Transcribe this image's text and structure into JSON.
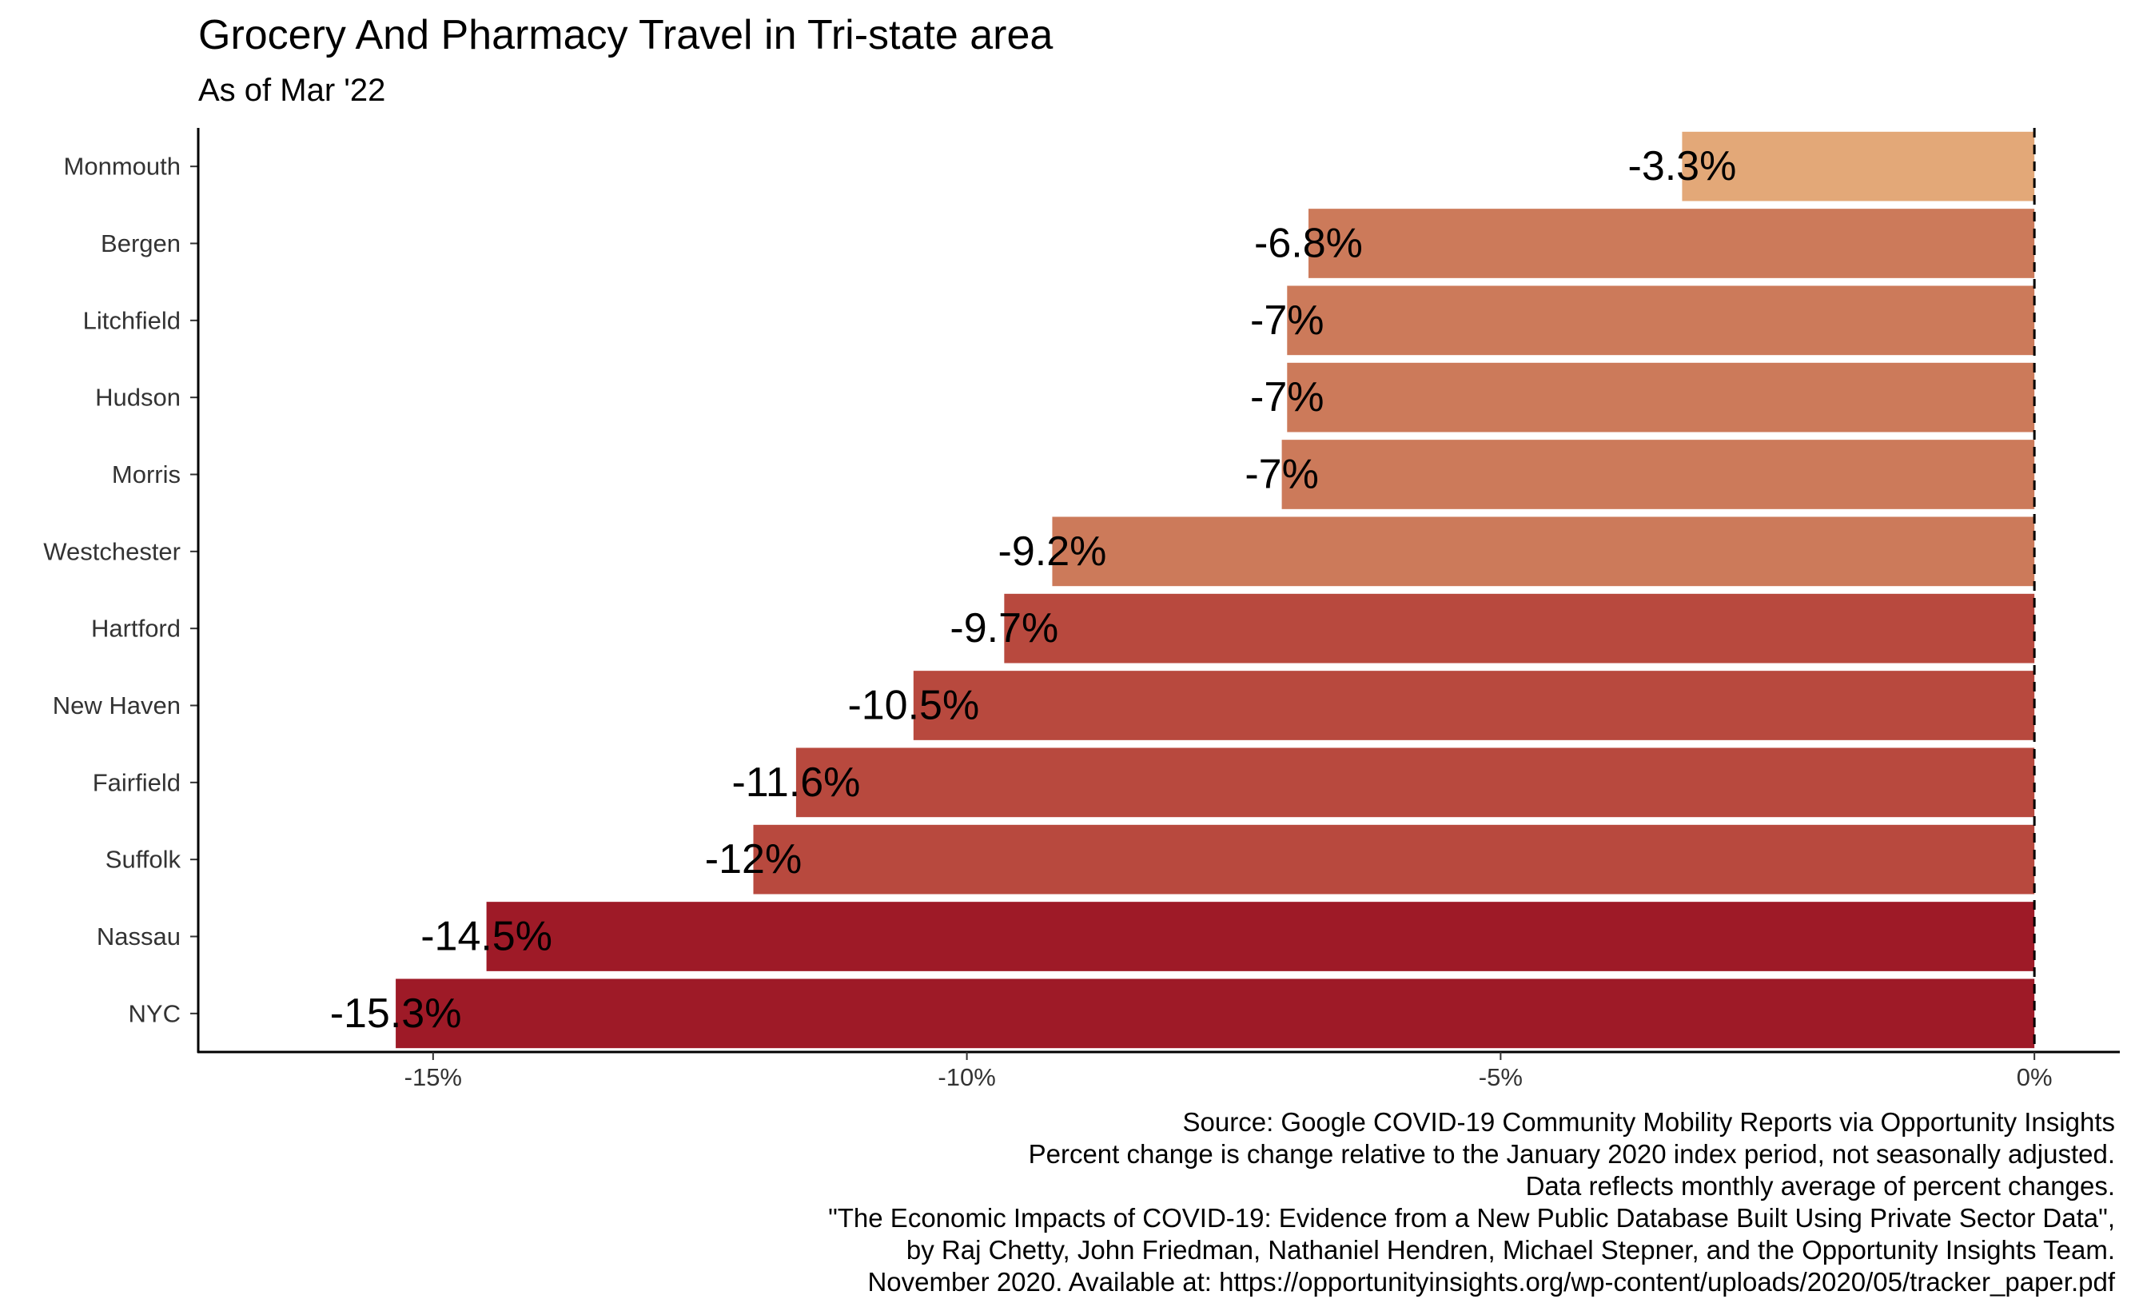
{
  "chart_data": {
    "type": "bar",
    "orientation": "horizontal",
    "title": "Grocery And Pharmacy Travel in Tri-state area",
    "subtitle": "As of Mar '22",
    "categories": [
      "Monmouth",
      "Bergen",
      "Litchfield",
      "Hudson",
      "Morris",
      "Westchester",
      "Hartford",
      "New Haven",
      "Fairfield",
      "Suffolk",
      "Nassau",
      "NYC"
    ],
    "values": [
      -3.3,
      -6.8,
      -7.0,
      -7.0,
      -7.05,
      -9.2,
      -9.65,
      -10.5,
      -11.6,
      -12.0,
      -14.5,
      -15.35
    ],
    "data_labels": [
      "-3.3%",
      "-6.8%",
      "-7%",
      "-7%",
      "-7%",
      "-9.2%",
      "-9.7%",
      "-10.5%",
      "-11.6%",
      "-12%",
      "-14.5%",
      "-15.3%"
    ],
    "bar_colors": [
      "#E3A878",
      "#CC7A5A",
      "#CC7A5A",
      "#CC7A5A",
      "#CC7A5A",
      "#CC7A5A",
      "#B8493E",
      "#B8493E",
      "#B8493E",
      "#B8493E",
      "#9E1A27",
      "#9E1A27"
    ],
    "x_ticks": [
      -15,
      -10,
      -5,
      0
    ],
    "x_tick_labels": [
      "-15%",
      "-10%",
      "-5%",
      "0%"
    ],
    "xlim": [
      -17.2,
      0.8
    ],
    "reference_line": 0,
    "grid": false,
    "legend": "none",
    "xlabel": "",
    "ylabel": ""
  },
  "caption": [
    "Source: Google COVID-19 Community Mobility Reports via Opportunity Insights",
    "Percent change is change relative to the January 2020 index period, not seasonally adjusted.",
    "Data reflects monthly average of percent changes.",
    "\"The Economic Impacts of COVID-19: Evidence from a New Public Database Built Using Private Sector Data\",",
    "by Raj Chetty, John Friedman, Nathaniel Hendren, Michael Stepner, and the Opportunity Insights Team.",
    "November 2020. Available at: https://opportunityinsights.org/wp-content/uploads/2020/05/tracker_paper.pdf"
  ]
}
